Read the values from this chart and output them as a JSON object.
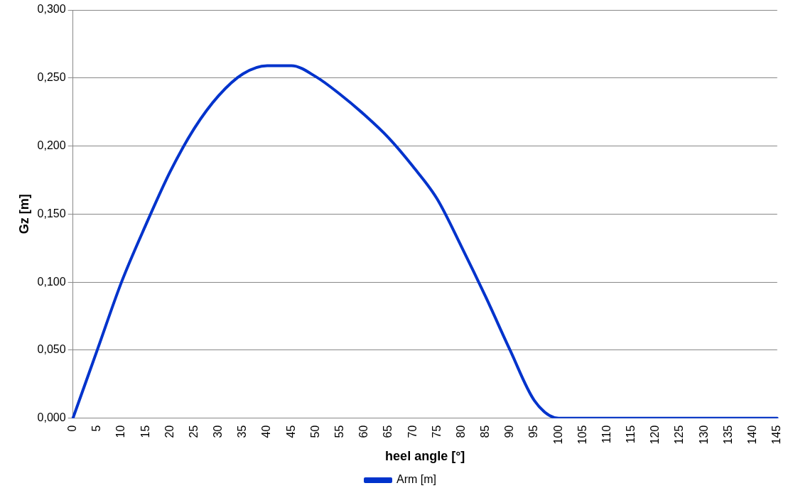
{
  "chart_data": {
    "type": "line",
    "xlabel": "heel angle [°]",
    "ylabel": "Gz [m]",
    "categories": [
      "0",
      "5",
      "10",
      "15",
      "20",
      "25",
      "30",
      "35",
      "40",
      "45",
      "50",
      "55",
      "60",
      "65",
      "70",
      "75",
      "80",
      "85",
      "90",
      "95",
      "100",
      "105",
      "110",
      "115",
      "120",
      "125",
      "130",
      "135",
      "140",
      "145"
    ],
    "series": [
      {
        "name": "Arm [m]",
        "color": "#0033cc",
        "values": [
          0,
          0.05,
          0.1,
          0.142,
          0.181,
          0.213,
          0.237,
          0.253,
          0.259,
          0.259,
          0.251,
          0.238,
          0.223,
          0.206,
          0.185,
          0.161,
          0.126,
          0.089,
          0.05,
          0.013,
          0,
          0,
          0,
          0,
          0,
          0,
          0,
          0,
          0,
          0
        ]
      }
    ],
    "ylim": [
      0,
      0.3
    ],
    "yticks": [
      {
        "value": 0,
        "label": "0,000"
      },
      {
        "value": 0.05,
        "label": "0,050"
      },
      {
        "value": 0.1,
        "label": "0,100"
      },
      {
        "value": 0.15,
        "label": "0,150"
      },
      {
        "value": 0.2,
        "label": "0,200"
      },
      {
        "value": 0.25,
        "label": "0,250"
      },
      {
        "value": 0.3,
        "label": "0,300"
      }
    ],
    "grid": "y",
    "legend": "bottom",
    "marker": "none",
    "line_style": "solid"
  }
}
